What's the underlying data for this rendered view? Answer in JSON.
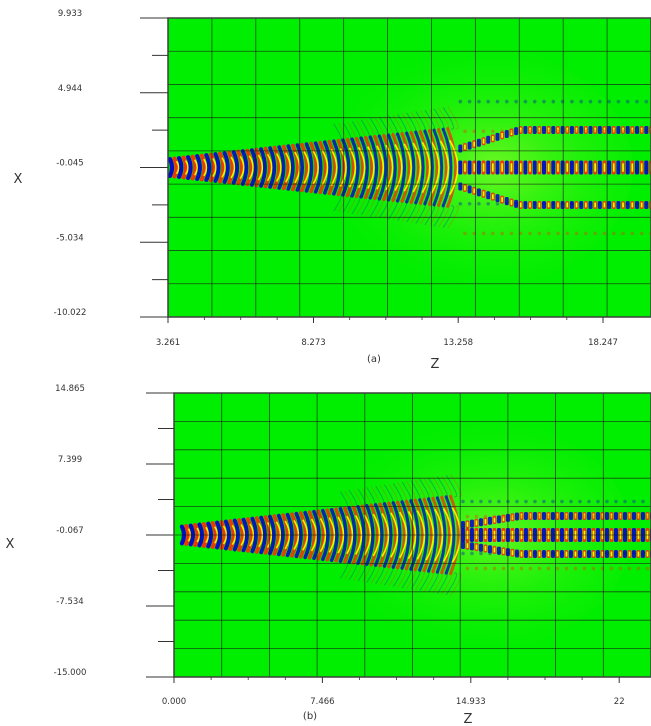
{
  "chart_data": [
    {
      "type": "heatmap",
      "panel_label": "(a)",
      "xlabel": "Z",
      "ylabel": "X",
      "x_ticks": [
        {
          "value": 3.261,
          "label": "3.261"
        },
        {
          "value": 8.273,
          "label": "8.273"
        },
        {
          "value": 13.258,
          "label": "13.258"
        },
        {
          "value": 18.247,
          "label": "18.247"
        }
      ],
      "y_ticks": [
        {
          "value": 9.933,
          "label": "9.933"
        },
        {
          "value": 4.944,
          "label": "4.944"
        },
        {
          "value": -0.045,
          "label": "-0.045"
        },
        {
          "value": -5.034,
          "label": "-5.034"
        },
        {
          "value": -10.022,
          "label": "-10.022"
        }
      ],
      "xlim": [
        3.261,
        19.9
      ],
      "ylim": [
        -10.022,
        9.933
      ],
      "grid": true,
      "background_color": "#00ee00",
      "field_colors": {
        "positive": "#ff2a00",
        "mid": "#ffff00",
        "negative": "#0000cc"
      },
      "field_pattern": {
        "source_z": 3.261,
        "beam_x": -0.045,
        "split_z": 13.3,
        "branch_offset": 2.0
      }
    },
    {
      "type": "heatmap",
      "panel_label": "(b)",
      "xlabel": "Z",
      "ylabel": "X",
      "x_ticks": [
        {
          "value": 0.0,
          "label": "0.000"
        },
        {
          "value": 7.466,
          "label": "7.466"
        },
        {
          "value": 14.933,
          "label": "14.933"
        },
        {
          "value": 22.4,
          "label": "22"
        }
      ],
      "y_ticks": [
        {
          "value": 14.865,
          "label": "14.865"
        },
        {
          "value": 7.399,
          "label": "7.399"
        },
        {
          "value": -0.067,
          "label": "-0.067"
        },
        {
          "value": -7.534,
          "label": "-7.534"
        },
        {
          "value": -15.0,
          "label": "-15.000"
        }
      ],
      "xlim": [
        0.0,
        24.0
      ],
      "ylim": [
        -15.0,
        14.865
      ],
      "grid": true,
      "background_color": "#00ee00",
      "field_colors": {
        "positive": "#ff2a00",
        "mid": "#ffff00",
        "negative": "#0000cc"
      },
      "field_pattern": {
        "source_z": 0.3,
        "beam_x": -0.067,
        "split_z": 14.4,
        "branch_offset": 1.6
      }
    }
  ]
}
